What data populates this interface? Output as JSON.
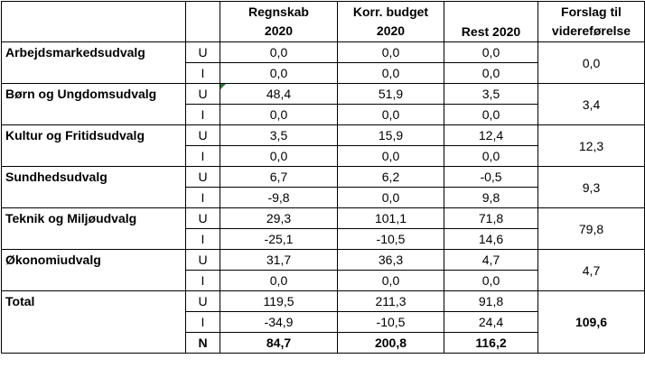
{
  "headers": {
    "name": "",
    "code": "",
    "regnskab_line1": "Regnskab",
    "regnskab_line2": "2020",
    "korr_line1": "Korr. budget",
    "korr_line2": "2020",
    "rest": "Rest 2020",
    "forslag_line1": "Forslag til",
    "forslag_line2": "videreførelse"
  },
  "groups": [
    {
      "name": "Arbejdsmarkedsudvalg",
      "rows": [
        {
          "code": "U",
          "regnskab": "0,0",
          "korr": "0,0",
          "rest": "0,0"
        },
        {
          "code": "I",
          "regnskab": "0,0",
          "korr": "0,0",
          "rest": "0,0"
        }
      ],
      "forslag": "0,0"
    },
    {
      "name": "Børn og Ungdomsudvalg",
      "rows": [
        {
          "code": "U",
          "regnskab": "48,4",
          "korr": "51,9",
          "rest": "3,5"
        },
        {
          "code": "I",
          "regnskab": "0,0",
          "korr": "0,0",
          "rest": "0,0"
        }
      ],
      "forslag": "3,4"
    },
    {
      "name": "Kultur og Fritidsudvalg",
      "rows": [
        {
          "code": "U",
          "regnskab": "3,5",
          "korr": "15,9",
          "rest": "12,4"
        },
        {
          "code": "I",
          "regnskab": "0,0",
          "korr": "0,0",
          "rest": "0,0"
        }
      ],
      "forslag": "12,3"
    },
    {
      "name": "Sundhedsudvalg",
      "rows": [
        {
          "code": "U",
          "regnskab": "6,7",
          "korr": "6,2",
          "rest": "-0,5"
        },
        {
          "code": "I",
          "regnskab": "-9,8",
          "korr": "0,0",
          "rest": "9,8"
        }
      ],
      "forslag": "9,3"
    },
    {
      "name": "Teknik og Miljøudvalg",
      "rows": [
        {
          "code": "U",
          "regnskab": "29,3",
          "korr": "101,1",
          "rest": "71,8"
        },
        {
          "code": "I",
          "regnskab": "-25,1",
          "korr": "-10,5",
          "rest": "14,6"
        }
      ],
      "forslag": "79,8"
    },
    {
      "name": "Økonomiudvalg",
      "rows": [
        {
          "code": "U",
          "regnskab": "31,7",
          "korr": "36,3",
          "rest": "4,7"
        },
        {
          "code": "I",
          "regnskab": "0,0",
          "korr": "0,0",
          "rest": "0,0"
        }
      ],
      "forslag": "4,7"
    }
  ],
  "total": {
    "name": "Total",
    "rows": [
      {
        "code": "U",
        "regnskab": "119,5",
        "korr": "211,3",
        "rest": "91,8"
      },
      {
        "code": "I",
        "regnskab": "-34,9",
        "korr": "-10,5",
        "rest": "24,4"
      },
      {
        "code": "N",
        "regnskab": "84,7",
        "korr": "200,8",
        "rest": "116,2"
      }
    ],
    "forslag": "109,6"
  }
}
